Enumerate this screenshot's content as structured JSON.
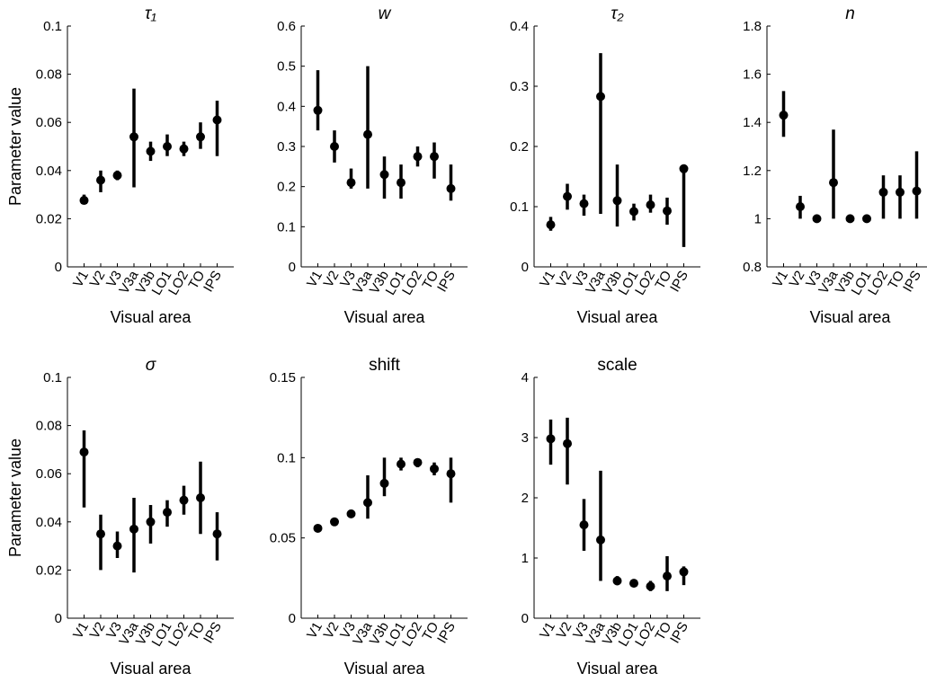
{
  "chart_data": [
    {
      "type": "errorbar",
      "title": "τ₁",
      "title_style": "italic",
      "ylabel": "Parameter value",
      "xlabel": "Visual area",
      "categories": [
        "V1",
        "V2",
        "V3",
        "V3a",
        "V3b",
        "LO1",
        "LO2",
        "TO",
        "IPS"
      ],
      "values": [
        0.0276,
        0.036,
        0.038,
        0.054,
        0.048,
        0.05,
        0.049,
        0.054,
        0.061
      ],
      "low": [
        0.026,
        0.031,
        0.036,
        0.033,
        0.044,
        0.046,
        0.046,
        0.049,
        0.046
      ],
      "high": [
        0.03,
        0.04,
        0.04,
        0.074,
        0.052,
        0.055,
        0.052,
        0.06,
        0.069
      ],
      "color": "#000000",
      "ylim": [
        0,
        0.1
      ],
      "yticks": [
        0,
        0.02,
        0.04,
        0.06,
        0.08,
        0.1
      ]
    },
    {
      "type": "errorbar",
      "title": "w",
      "title_style": "italic",
      "xlabel": "Visual area",
      "categories": [
        "V1",
        "V2",
        "V3",
        "V3a",
        "V3b",
        "LO1",
        "LO2",
        "TO",
        "IPS"
      ],
      "values": [
        0.39,
        0.3,
        0.21,
        0.33,
        0.23,
        0.21,
        0.275,
        0.275,
        0.195
      ],
      "low": [
        0.34,
        0.26,
        0.195,
        0.195,
        0.17,
        0.17,
        0.25,
        0.22,
        0.165
      ],
      "high": [
        0.49,
        0.34,
        0.245,
        0.5,
        0.275,
        0.255,
        0.3,
        0.31,
        0.255
      ],
      "color": "#000000",
      "ylim": [
        0,
        0.6
      ],
      "yticks": [
        0,
        0.1,
        0.2,
        0.3,
        0.4,
        0.5,
        0.6
      ]
    },
    {
      "type": "errorbar",
      "title": "τ₂",
      "title_style": "italic",
      "xlabel": "Visual area",
      "categories": [
        "V1",
        "V2",
        "V3",
        "V3a",
        "V3b",
        "LO1",
        "LO2",
        "TO",
        "IPS"
      ],
      "values": [
        0.07,
        0.117,
        0.105,
        0.283,
        0.11,
        0.092,
        0.103,
        0.093,
        0.163
      ],
      "low": [
        0.06,
        0.095,
        0.085,
        0.088,
        0.067,
        0.077,
        0.09,
        0.07,
        0.033
      ],
      "high": [
        0.083,
        0.138,
        0.12,
        0.355,
        0.17,
        0.105,
        0.12,
        0.115,
        0.165
      ],
      "color": "#000000",
      "ylim": [
        0,
        0.4
      ],
      "yticks": [
        0,
        0.1,
        0.2,
        0.3,
        0.4
      ]
    },
    {
      "type": "errorbar",
      "title": "n",
      "title_style": "italic",
      "xlabel": "Visual area",
      "categories": [
        "V1",
        "V2",
        "V3",
        "V3a",
        "V3b",
        "LO1",
        "LO2",
        "TO",
        "IPS"
      ],
      "values": [
        1.43,
        1.05,
        1.0,
        1.15,
        1.0,
        1.0,
        1.11,
        1.11,
        1.115
      ],
      "low": [
        1.34,
        1.0,
        1.0,
        1.0,
        1.0,
        1.0,
        1.0,
        1.0,
        1.0
      ],
      "high": [
        1.53,
        1.095,
        1.0,
        1.37,
        1.0,
        1.0,
        1.18,
        1.18,
        1.28
      ],
      "color": "#000000",
      "ylim": [
        0.8,
        1.8
      ],
      "yticks": [
        0.8,
        1,
        1.2,
        1.4,
        1.6,
        1.8
      ]
    },
    {
      "type": "errorbar",
      "title": "σ",
      "title_style": "italic",
      "ylabel": "Parameter value",
      "xlabel": "Visual area",
      "categories": [
        "V1",
        "V2",
        "V3",
        "V3a",
        "V3b",
        "LO1",
        "LO2",
        "TO",
        "IPS"
      ],
      "values": [
        0.069,
        0.035,
        0.03,
        0.037,
        0.04,
        0.044,
        0.049,
        0.05,
        0.035
      ],
      "low": [
        0.046,
        0.02,
        0.025,
        0.019,
        0.031,
        0.038,
        0.043,
        0.035,
        0.024
      ],
      "high": [
        0.078,
        0.043,
        0.036,
        0.05,
        0.047,
        0.049,
        0.055,
        0.065,
        0.044
      ],
      "color": "#000000",
      "ylim": [
        0,
        0.1
      ],
      "yticks": [
        0,
        0.02,
        0.04,
        0.06,
        0.08,
        0.1
      ]
    },
    {
      "type": "errorbar",
      "title": "shift",
      "title_style": "normal",
      "xlabel": "Visual area",
      "categories": [
        "V1",
        "V2",
        "V3",
        "V3a",
        "V3b",
        "LO1",
        "LO2",
        "TO",
        "IPS"
      ],
      "values": [
        0.056,
        0.06,
        0.065,
        0.072,
        0.084,
        0.096,
        0.097,
        0.093,
        0.09
      ],
      "low": [
        0.055,
        0.058,
        0.063,
        0.062,
        0.076,
        0.092,
        0.094,
        0.089,
        0.072
      ],
      "high": [
        0.057,
        0.062,
        0.067,
        0.089,
        0.1,
        0.1,
        0.099,
        0.097,
        0.1
      ],
      "color": "#000000",
      "ylim": [
        0,
        0.15
      ],
      "yticks": [
        0,
        0.05,
        0.1,
        0.15
      ]
    },
    {
      "type": "errorbar",
      "title": "scale",
      "title_style": "normal",
      "xlabel": "Visual area",
      "categories": [
        "V1",
        "V2",
        "V3",
        "V3a",
        "V3b",
        "LO1",
        "LO2",
        "TO",
        "IPS"
      ],
      "values": [
        2.98,
        2.9,
        1.55,
        1.3,
        0.62,
        0.58,
        0.53,
        0.7,
        0.77
      ],
      "low": [
        2.55,
        2.22,
        1.12,
        0.62,
        0.55,
        0.52,
        0.45,
        0.45,
        0.55
      ],
      "high": [
        3.3,
        3.33,
        1.98,
        2.45,
        0.7,
        0.63,
        0.62,
        1.03,
        0.86
      ],
      "color": "#000000",
      "ylim": [
        0,
        4
      ],
      "yticks": [
        0,
        1,
        2,
        3,
        4
      ]
    }
  ]
}
